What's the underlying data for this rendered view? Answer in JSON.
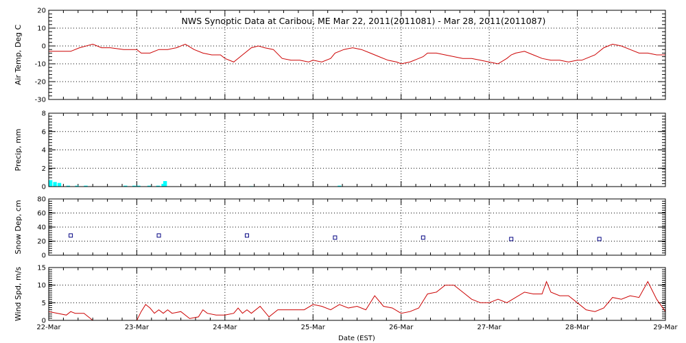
{
  "chart_data": {
    "title": "NWS Synoptic Data at Caribou, ME   Mar 22, 2011(2011081) - Mar 28, 2011(2011087)",
    "xlabel": "Date (EST)",
    "x_ticks": [
      "22-Mar",
      "23-Mar",
      "24-Mar",
      "25-Mar",
      "26-Mar",
      "27-Mar",
      "28-Mar",
      "29-Mar"
    ],
    "x_unit": "days from 22-Mar 00:00",
    "xlim": [
      0,
      7
    ],
    "panels": [
      {
        "type": "line",
        "ylabel": "Air Temp, Deg C",
        "ylim": [
          -30,
          20
        ],
        "y_ticks": [
          20,
          10,
          0,
          -10,
          -20,
          -30
        ],
        "color": "#cc0000",
        "series": {
          "x": [
            0,
            0.25,
            0.35,
            0.5,
            0.6,
            0.7,
            0.85,
            1.0,
            1.05,
            1.15,
            1.25,
            1.35,
            1.45,
            1.55,
            1.65,
            1.75,
            1.85,
            1.95,
            2.0,
            2.1,
            2.2,
            2.3,
            2.38,
            2.45,
            2.55,
            2.65,
            2.75,
            2.85,
            2.95,
            3.0,
            3.1,
            3.2,
            3.25,
            3.35,
            3.45,
            3.55,
            3.65,
            3.75,
            3.85,
            3.95,
            4.0,
            4.1,
            4.2,
            4.25,
            4.3,
            4.4,
            4.5,
            4.6,
            4.7,
            4.8,
            4.9,
            5.0,
            5.1,
            5.2,
            5.25,
            5.3,
            5.4,
            5.5,
            5.6,
            5.7,
            5.8,
            5.9,
            6.0,
            6.05,
            6.1,
            6.2,
            6.3,
            6.4,
            6.5,
            6.6,
            6.7,
            6.8,
            6.9,
            7.0
          ],
          "values": [
            -3,
            -3,
            -1,
            1,
            -1,
            -1,
            -2,
            -2,
            -4,
            -4,
            -2,
            -2,
            -1,
            1,
            -2,
            -4,
            -5,
            -5,
            -7,
            -9,
            -5,
            -1,
            0,
            -1,
            -2,
            -7,
            -8,
            -8,
            -9,
            -8,
            -9,
            -7,
            -4,
            -2,
            -1,
            -2,
            -4,
            -6,
            -8,
            -9,
            -10,
            -9,
            -7,
            -6,
            -4,
            -4,
            -5,
            -6,
            -7,
            -7,
            -8,
            -9,
            -10,
            -7,
            -5,
            -4,
            -3,
            -5,
            -7,
            -8,
            -8,
            -9,
            -8,
            -8,
            -7,
            -5,
            -1,
            1,
            0,
            -2,
            -4,
            -4,
            -5,
            -5
          ]
        }
      },
      {
        "type": "bar",
        "ylabel": "Precip, mm",
        "ylim": [
          0,
          8
        ],
        "y_ticks": [
          8,
          6,
          4,
          2,
          0
        ],
        "color": "#00ffff",
        "series": {
          "x": [
            0.0,
            0.05,
            0.1,
            0.2,
            0.3,
            0.4,
            0.85,
            0.95,
            1.0,
            1.12,
            1.22,
            1.28,
            1.3,
            2.28,
            3.28
          ],
          "values": [
            0.7,
            0.5,
            0.4,
            0.1,
            0.1,
            0.1,
            0.1,
            0.1,
            0.1,
            0.1,
            0.1,
            0.3,
            0.6,
            0.05,
            0.1
          ]
        }
      },
      {
        "type": "scatter",
        "ylabel": "Snow Dep, cm",
        "ylim": [
          0,
          80
        ],
        "y_ticks": [
          80,
          60,
          40,
          20,
          0
        ],
        "color": "#000080",
        "series": {
          "x": [
            0.25,
            1.25,
            2.25,
            3.25,
            4.25,
            5.25,
            6.25
          ],
          "values": [
            28,
            28,
            28,
            25,
            25,
            23,
            23
          ]
        }
      },
      {
        "type": "line",
        "ylabel": "Wind Spd, m/s",
        "ylim": [
          0,
          15
        ],
        "y_ticks": [
          15,
          10,
          5,
          0
        ],
        "color": "#cc0000",
        "series": {
          "x": [
            0,
            0.1,
            0.2,
            0.25,
            0.3,
            0.4,
            0.5,
            0.6,
            0.7,
            0.8,
            0.9,
            1.0,
            1.05,
            1.1,
            1.15,
            1.2,
            1.25,
            1.3,
            1.35,
            1.4,
            1.5,
            1.6,
            1.7,
            1.75,
            1.8,
            1.9,
            2.0,
            2.1,
            2.15,
            2.2,
            2.25,
            2.3,
            2.4,
            2.5,
            2.6,
            2.7,
            2.8,
            2.9,
            3.0,
            3.1,
            3.2,
            3.3,
            3.4,
            3.5,
            3.6,
            3.7,
            3.8,
            3.9,
            4.0,
            4.1,
            4.2,
            4.3,
            4.4,
            4.5,
            4.6,
            4.7,
            4.8,
            4.9,
            5.0,
            5.1,
            5.2,
            5.3,
            5.4,
            5.5,
            5.6,
            5.65,
            5.7,
            5.8,
            5.9,
            6.0,
            6.1,
            6.2,
            6.3,
            6.4,
            6.5,
            6.6,
            6.7,
            6.8,
            6.9,
            7.0
          ],
          "values": [
            2.5,
            2,
            1.5,
            2.5,
            2,
            2,
            0,
            0,
            0,
            0,
            0,
            0,
            2.5,
            4.5,
            3.5,
            2,
            3,
            2,
            3,
            2,
            2.5,
            0.5,
            1,
            3,
            2,
            1.5,
            1.5,
            2,
            3.5,
            2,
            3,
            2,
            4,
            1,
            3,
            3,
            3,
            3,
            4.5,
            4,
            3,
            4.5,
            3.5,
            4,
            3,
            7,
            4,
            3.5,
            2,
            2.5,
            3.5,
            7.5,
            8,
            10,
            10,
            8,
            6,
            5,
            5,
            6,
            5,
            6.5,
            8,
            7.5,
            7.5,
            11,
            8,
            7,
            7,
            5,
            3,
            2.5,
            3.5,
            6.5,
            6,
            7,
            6.5,
            11,
            6,
            2.5
          ]
        }
      }
    ]
  }
}
